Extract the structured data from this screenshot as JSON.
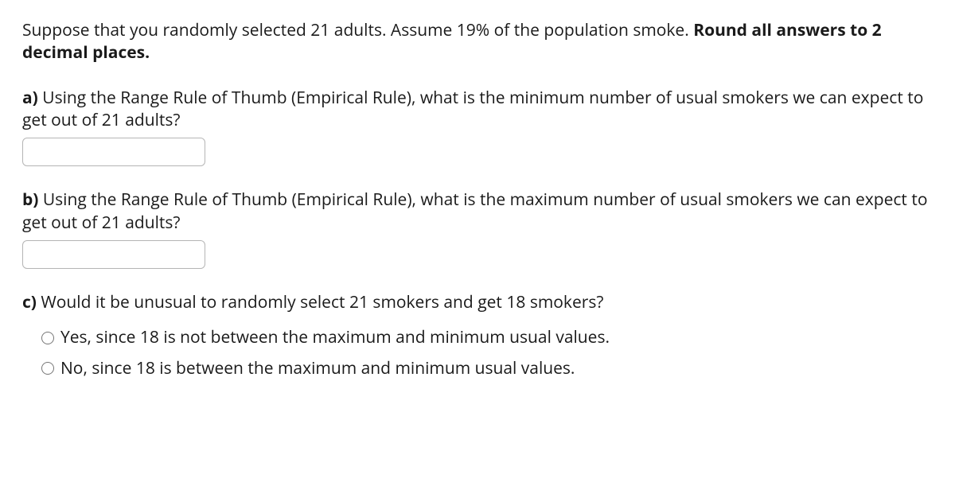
{
  "intro": {
    "text": "Suppose that you randomly selected 21 adults. Assume 19% of the population smoke.  ",
    "bold": "Round all answers to 2 decimal places."
  },
  "parts": {
    "a": {
      "label": "a)",
      "text": " Using the Range Rule of Thumb (Empirical Rule), what is the minimum number of usual smokers we can expect to get out of 21 adults?",
      "input_value": ""
    },
    "b": {
      "label": "b)",
      "text": " Using the Range Rule of Thumb (Empirical Rule), what is the maximum number of usual smokers we can expect to get out of 21 adults?",
      "input_value": ""
    },
    "c": {
      "label": "c)",
      "text": " Would it be unusual to randomly select 21 smokers and get 18 smokers?",
      "options": [
        "Yes, since 18 is not between the maximum and minimum usual values.",
        "No, since 18 is between the maximum and minimum usual values."
      ]
    }
  }
}
